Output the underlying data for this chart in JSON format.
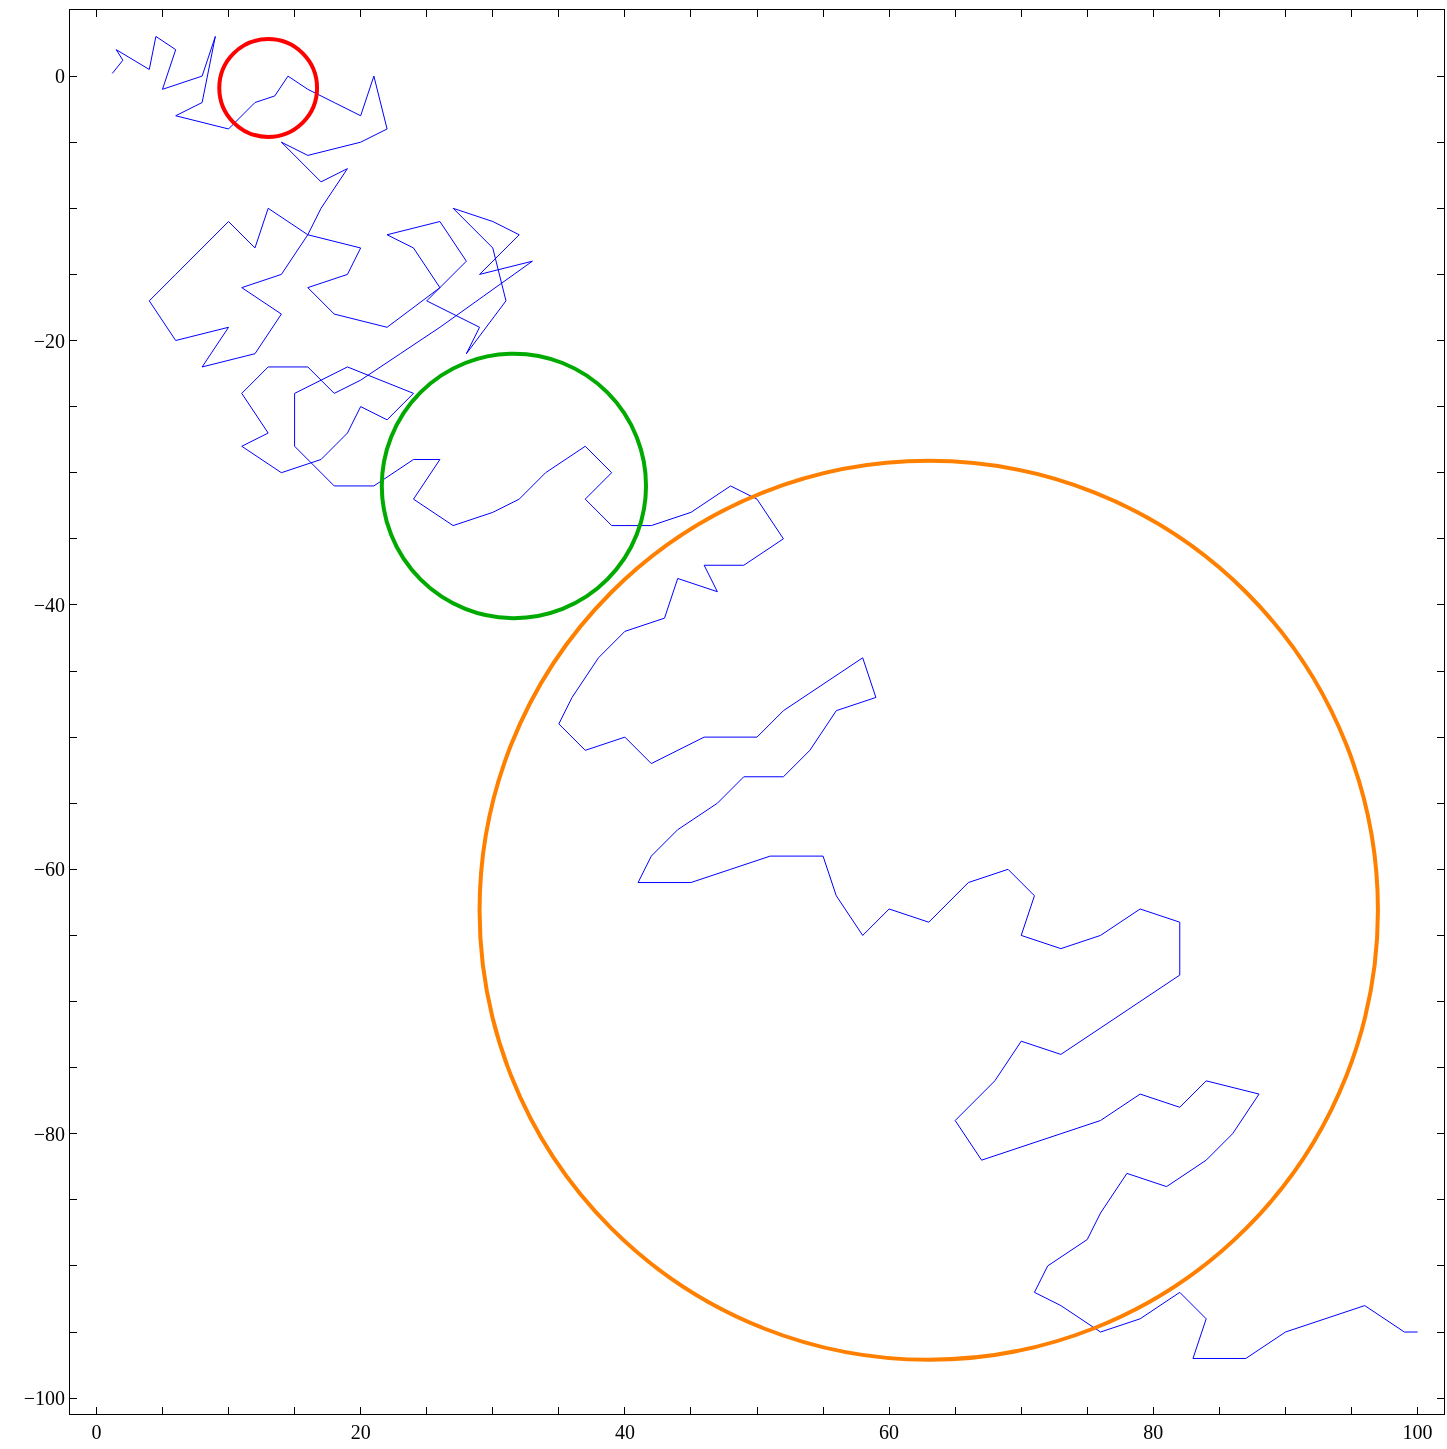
{
  "chart_data": {
    "type": "line",
    "xlim": [
      -2,
      102
    ],
    "ylim": [
      -101.2,
      5
    ],
    "xticks": [
      0,
      {
        "value": 5,
        "label": null
      },
      {
        "value": 10,
        "label": null
      },
      {
        "value": 15,
        "label": null
      },
      20,
      {
        "value": 25,
        "label": null
      },
      {
        "value": 30,
        "label": null
      },
      {
        "value": 35,
        "label": null
      },
      40,
      {
        "value": 45,
        "label": null
      },
      {
        "value": 50,
        "label": null
      },
      {
        "value": 55,
        "label": null
      },
      60,
      {
        "value": 65,
        "label": null
      },
      {
        "value": 70,
        "label": null
      },
      {
        "value": 75,
        "label": null
      },
      80,
      {
        "value": 85,
        "label": null
      },
      {
        "value": 90,
        "label": null
      },
      {
        "value": 95,
        "label": null
      },
      100
    ],
    "yticks": [
      0,
      {
        "value": -5,
        "label": null
      },
      {
        "value": -10,
        "label": null
      },
      {
        "value": -15,
        "label": null
      },
      {
        "value": -20,
        "label": "−20"
      },
      {
        "value": -25,
        "label": null
      },
      {
        "value": -30,
        "label": null
      },
      {
        "value": -35,
        "label": null
      },
      {
        "value": -40,
        "label": "−40"
      },
      {
        "value": -45,
        "label": null
      },
      {
        "value": -50,
        "label": null
      },
      {
        "value": -55,
        "label": null
      },
      {
        "value": -60,
        "label": "−60"
      },
      {
        "value": -65,
        "label": null
      },
      {
        "value": -70,
        "label": null
      },
      {
        "value": -75,
        "label": null
      },
      {
        "value": -80,
        "label": "−80"
      },
      {
        "value": -85,
        "label": null
      },
      {
        "value": -90,
        "label": null
      },
      {
        "value": -95,
        "label": null
      },
      {
        "value": -100,
        "label": "−100"
      }
    ],
    "marker": "none",
    "line_style": "solid",
    "series": [
      {
        "color": "#0000ff",
        "x": [
          1.2,
          2,
          1.5,
          4,
          4.5,
          6,
          5,
          8,
          9,
          8,
          6,
          10,
          12,
          13.5,
          14.5,
          16,
          18,
          20,
          21,
          22,
          20,
          16,
          14,
          17,
          19,
          17,
          16,
          13,
          12,
          10,
          8,
          6,
          4,
          6,
          10,
          8,
          12,
          14,
          11,
          14,
          16,
          20,
          19,
          16,
          18,
          22,
          26,
          24,
          22,
          26,
          28,
          25,
          29,
          28,
          31,
          30,
          27,
          30,
          32,
          29,
          33,
          26,
          23,
          20,
          18,
          16,
          13,
          11,
          13,
          11,
          14,
          17,
          19,
          20,
          22,
          24,
          19,
          15,
          15,
          18,
          21,
          24,
          26,
          24,
          27,
          30,
          32,
          34,
          37,
          39,
          37,
          39,
          42,
          45,
          48,
          50,
          52,
          49,
          46,
          47,
          44,
          43,
          40,
          38,
          36,
          35,
          37,
          40,
          42,
          46,
          50,
          52,
          55,
          58,
          59,
          56,
          54,
          52,
          49,
          47,
          44,
          42,
          41,
          45,
          48,
          51,
          55,
          56,
          58,
          60,
          63,
          66,
          69,
          71,
          70,
          73,
          76,
          79,
          82,
          82,
          79,
          76,
          73,
          70,
          68,
          65,
          67,
          70,
          73,
          76,
          79,
          82,
          84,
          88,
          86,
          84,
          81,
          78,
          76,
          75,
          72,
          71,
          73,
          76,
          79,
          82,
          84,
          83,
          87,
          90,
          93,
          96,
          99,
          100
        ],
        "values": [
          0.2,
          1.2,
          2,
          0.5,
          3,
          2,
          -1,
          0,
          3,
          -2,
          -3,
          -4,
          -2,
          -1.5,
          0,
          -1,
          -2,
          -3,
          0,
          -4,
          -5,
          -6,
          -5,
          -8,
          -7,
          -10,
          -12,
          -10,
          -13,
          -11,
          -13,
          -15,
          -17,
          -20,
          -19,
          -22,
          -21,
          -18,
          -16,
          -15,
          -12,
          -13,
          -15,
          -16,
          -18,
          -19,
          -16,
          -13,
          -12,
          -11,
          -14,
          -17,
          -19,
          -21,
          -17,
          -13,
          -10,
          -11,
          -12,
          -15,
          -14,
          -19,
          -21,
          -23,
          -24,
          -22,
          -22,
          -24,
          -27,
          -28,
          -30,
          -29,
          -27,
          -25,
          -26,
          -24,
          -22,
          -24,
          -28,
          -31,
          -31,
          -29,
          -29,
          -32,
          -34,
          -33,
          -32,
          -30,
          -28,
          -30,
          -32,
          -34,
          -34,
          -33,
          -31,
          -32,
          -35,
          -37,
          -37,
          -39,
          -38,
          -41,
          -42,
          -44,
          -47,
          -49,
          -51,
          -50,
          -52,
          -50,
          -50,
          -48,
          -46,
          -44,
          -47,
          -48,
          -51,
          -53,
          -53,
          -55,
          -57,
          -59,
          -61,
          -61,
          -60,
          -59,
          -59,
          -62,
          -65,
          -63,
          -64,
          -61,
          -60,
          -62,
          -65,
          -66,
          -65,
          -63,
          -64,
          -68,
          -70,
          -72,
          -74,
          -73,
          -76,
          -79,
          -82,
          -81,
          -80,
          -79,
          -77,
          -78,
          -76,
          -77,
          -80,
          -82,
          -84,
          -83,
          -86,
          -88,
          -90,
          -92,
          -93,
          -95,
          -94,
          -92,
          -94,
          -97,
          -97,
          -95,
          -94,
          -93,
          -95,
          -95
        ]
      }
    ]
  }
}
